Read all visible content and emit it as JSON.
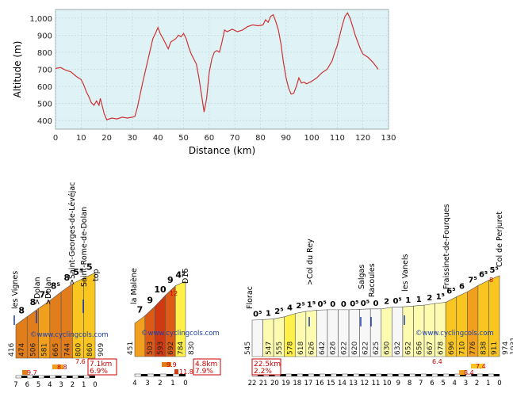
{
  "elevation_chart": {
    "xlabel": "Distance (km)",
    "ylabel": "Altitude (m)",
    "xlim": [
      0,
      130
    ],
    "ylim": [
      350,
      1050
    ]
  },
  "chart_data": [
    {
      "type": "line",
      "title": "",
      "xlabel": "Distance (km)",
      "ylabel": "Altitude (m)",
      "xlim": [
        0,
        130
      ],
      "ylim": [
        350,
        1050
      ],
      "x_ticks": [
        0,
        10,
        20,
        30,
        40,
        50,
        60,
        70,
        80,
        90,
        100,
        110,
        120,
        130
      ],
      "y_ticks": [
        400,
        500,
        600,
        700,
        800,
        900,
        1000
      ],
      "y_tick_labels": [
        "400",
        "500",
        "600",
        "700",
        "800",
        "900",
        "1,000"
      ],
      "grid": true,
      "line_color": "#cc3333",
      "background": "#dff3f7",
      "points": [
        [
          0,
          705
        ],
        [
          2,
          710
        ],
        [
          4,
          695
        ],
        [
          6,
          685
        ],
        [
          8,
          660
        ],
        [
          10,
          640
        ],
        [
          11,
          610
        ],
        [
          12,
          570
        ],
        [
          13,
          540
        ],
        [
          14,
          505
        ],
        [
          15,
          490
        ],
        [
          16,
          515
        ],
        [
          17,
          490
        ],
        [
          17.5,
          530
        ],
        [
          18,
          500
        ],
        [
          19,
          440
        ],
        [
          20,
          405
        ],
        [
          22,
          415
        ],
        [
          24,
          410
        ],
        [
          26,
          420
        ],
        [
          28,
          415
        ],
        [
          30,
          420
        ],
        [
          31,
          425
        ],
        [
          32,
          480
        ],
        [
          34,
          620
        ],
        [
          36,
          750
        ],
        [
          38,
          880
        ],
        [
          39,
          910
        ],
        [
          40,
          945
        ],
        [
          41,
          905
        ],
        [
          42,
          880
        ],
        [
          43,
          850
        ],
        [
          44,
          820
        ],
        [
          45,
          860
        ],
        [
          47,
          880
        ],
        [
          48,
          900
        ],
        [
          49,
          890
        ],
        [
          50,
          910
        ],
        [
          51,
          880
        ],
        [
          52,
          830
        ],
        [
          53,
          790
        ],
        [
          54,
          760
        ],
        [
          55,
          730
        ],
        [
          56,
          650
        ],
        [
          57,
          550
        ],
        [
          58,
          450
        ],
        [
          59,
          530
        ],
        [
          60,
          680
        ],
        [
          61,
          760
        ],
        [
          62,
          800
        ],
        [
          63,
          810
        ],
        [
          64,
          800
        ],
        [
          65,
          860
        ],
        [
          66,
          930
        ],
        [
          67,
          920
        ],
        [
          69,
          935
        ],
        [
          71,
          920
        ],
        [
          73,
          930
        ],
        [
          75,
          950
        ],
        [
          77,
          960
        ],
        [
          79,
          955
        ],
        [
          81,
          960
        ],
        [
          82,
          990
        ],
        [
          83,
          975
        ],
        [
          84,
          1010
        ],
        [
          85,
          1020
        ],
        [
          86,
          980
        ],
        [
          87,
          930
        ],
        [
          88,
          850
        ],
        [
          89,
          740
        ],
        [
          90,
          650
        ],
        [
          91,
          590
        ],
        [
          92,
          555
        ],
        [
          93,
          560
        ],
        [
          94,
          600
        ],
        [
          95,
          650
        ],
        [
          96,
          620
        ],
        [
          97,
          625
        ],
        [
          98,
          615
        ],
        [
          100,
          630
        ],
        [
          102,
          650
        ],
        [
          104,
          680
        ],
        [
          106,
          700
        ],
        [
          108,
          750
        ],
        [
          109,
          800
        ],
        [
          110,
          840
        ],
        [
          111,
          900
        ],
        [
          112,
          960
        ],
        [
          113,
          1010
        ],
        [
          114,
          1030
        ],
        [
          115,
          1000
        ],
        [
          116,
          950
        ],
        [
          117,
          900
        ],
        [
          118,
          860
        ],
        [
          119,
          820
        ],
        [
          120,
          790
        ],
        [
          122,
          770
        ],
        [
          124,
          740
        ],
        [
          126,
          700
        ]
      ]
    },
    {
      "type": "bar",
      "title": "",
      "categories": [
        "km 7",
        "km 6",
        "km 5",
        "km 4",
        "km 3",
        "km 2",
        "km 1"
      ],
      "start_altitude": 416,
      "base_altitudes": [
        "474",
        "506",
        "581",
        "665",
        "744",
        "800",
        "860"
      ],
      "end_altitude": "909",
      "gradients_label": [
        "8",
        "8",
        "7⁵",
        "8⁵",
        "8",
        "5⁵",
        "5"
      ],
      "gradients": [
        8,
        8,
        7.5,
        8.5,
        8,
        5.5,
        5
      ],
      "length": "7.1km",
      "average": "6.9%",
      "extra_right": "7.6",
      "extra_left": "9.7",
      "extra_mid": "8.8",
      "km_axis": [
        "7",
        "6",
        "5",
        "4",
        "3",
        "2",
        "1",
        "0"
      ],
      "waypoints": [
        "les Vignes",
        ">Dolan",
        ">Dolan",
        ">Saint-Georges-de-Lévéjac",
        "Saint-Rome-de-Dolan",
        "top"
      ],
      "watermark": "©www.cyclingcols.com"
    },
    {
      "type": "bar",
      "title": "",
      "categories": [
        "km 4",
        "km 3",
        "km 2",
        "km 1"
      ],
      "start_altitude": 451,
      "base_altitudes": [
        "503",
        "593",
        "692",
        "784"
      ],
      "end_altitude": "830",
      "gradients_label": [
        "7",
        "9",
        "10",
        "9",
        "4⁵"
      ],
      "gradients": [
        7,
        9,
        10,
        9,
        4.5
      ],
      "length": "4.8km",
      "average": "7.9%",
      "extra_top": "12",
      "extra_mid": "9.9",
      "extra_right": "11.8",
      "km_axis": [
        "4",
        "3",
        "2",
        "1",
        "0"
      ],
      "waypoints": [
        "la Malène",
        "D16"
      ],
      "watermark": "©www.cyclingcols.com"
    },
    {
      "type": "bar",
      "title": "",
      "categories": [
        "km 22",
        "km 21",
        "km 20",
        "km 19",
        "km 18",
        "km 17",
        "km 16",
        "km 15",
        "km 14",
        "km 13",
        "km 12",
        "km 11",
        "km 10",
        "km 9",
        "km 8",
        "km 7",
        "km 6",
        "km 5",
        "km 4",
        "km 3",
        "km 2",
        "km 1"
      ],
      "start_altitude": 545,
      "base_altitudes": [
        "547",
        "555",
        "578",
        "618",
        "626",
        "642",
        "626",
        "622",
        "620",
        "622",
        "625",
        "630",
        "632",
        "652",
        "656",
        "667",
        "678",
        "696",
        "710",
        "776",
        "838",
        "911"
      ],
      "end_altitude": "974",
      "end_extra_altitude": "1031",
      "gradients_label": [
        "0⁵",
        "1",
        "2⁵",
        "4",
        "2⁵",
        "1⁵",
        "0⁵",
        "0",
        "0",
        "0⁵",
        "0⁵",
        "0",
        "2",
        "0⁵",
        "1",
        "1",
        "2",
        "1⁵",
        "6⁵",
        "6",
        "7⁵",
        "6⁵",
        "5⁵"
      ],
      "gradients": [
        0.5,
        1,
        2.5,
        4,
        2.5,
        1.5,
        0.5,
        0,
        0,
        0.5,
        0.5,
        0,
        2,
        0.5,
        1,
        1,
        2,
        1.5,
        6.5,
        6,
        7.5,
        6.5,
        5.5
      ],
      "length": "22.5km",
      "average": "2.2%",
      "extra_top": "8",
      "extra_left": "6.4",
      "extra_mid": "8.4",
      "extra_right": "7.4",
      "km_axis": [
        "22",
        "21",
        "20",
        "19",
        "18",
        "17",
        "16",
        "15",
        "14",
        "13",
        "12",
        "11",
        "10",
        "9",
        "8",
        "7",
        "6",
        "5",
        "4",
        "3",
        "2",
        "1",
        "0"
      ],
      "waypoints": [
        "Florac",
        ">Col du Rey",
        "Salgas",
        "Racoules",
        "les Vanels",
        "Fraissinet-de-Fourques",
        "Col de Perjuret"
      ],
      "watermark": "©www.cyclingcols.com"
    }
  ]
}
